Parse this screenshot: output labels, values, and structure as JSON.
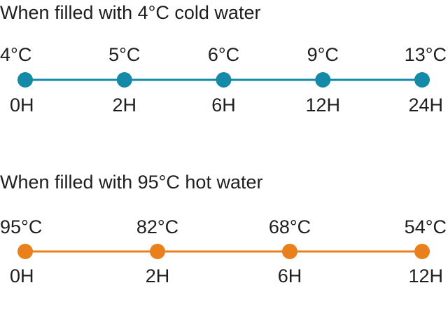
{
  "timelines": [
    {
      "title": "When filled with 4°C cold water",
      "color": "#1589a8",
      "points": [
        {
          "temp": "4°C",
          "time": "0H"
        },
        {
          "temp": "5°C",
          "time": "2H"
        },
        {
          "temp": "6°C",
          "time": "6H"
        },
        {
          "temp": "9°C",
          "time": "12H"
        },
        {
          "temp": "13°C",
          "time": "24H"
        }
      ]
    },
    {
      "title": "When filled with 95°C hot water",
      "color": "#e9801c",
      "points": [
        {
          "temp": "95°C",
          "time": "0H"
        },
        {
          "temp": "82°C",
          "time": "2H"
        },
        {
          "temp": "68°C",
          "time": "6H"
        },
        {
          "temp": "54°C",
          "time": "12H"
        }
      ]
    }
  ]
}
